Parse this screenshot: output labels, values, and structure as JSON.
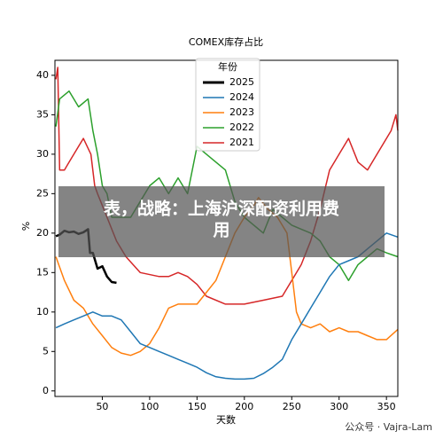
{
  "chart_data": {
    "type": "line",
    "title": "COMEX库存占比",
    "x_label": "天数",
    "y_label": "%",
    "xlim": [
      0,
      362
    ],
    "ylim": [
      -0.7,
      41.9
    ],
    "xticks": [
      50,
      100,
      150,
      200,
      250,
      300,
      350
    ],
    "yticks": [
      0,
      5,
      10,
      15,
      20,
      25,
      30,
      35,
      40
    ],
    "legend_title": "年份",
    "legend": "upper center",
    "series": [
      {
        "name": "2025",
        "color": "#000000",
        "x": [
          1,
          5,
          10,
          15,
          20,
          25,
          30,
          35,
          37,
          40,
          45,
          50,
          55,
          60,
          65
        ],
        "values": [
          19.6,
          19.8,
          20.3,
          20.1,
          20.2,
          19.9,
          20.1,
          20.5,
          17.5,
          17.5,
          15.5,
          15.8,
          14.5,
          13.8,
          13.7
        ]
      },
      {
        "name": "2024",
        "color": "#1f77b4",
        "x": [
          1,
          10,
          20,
          30,
          40,
          50,
          60,
          70,
          80,
          90,
          100,
          110,
          120,
          130,
          140,
          150,
          160,
          170,
          180,
          190,
          200,
          210,
          220,
          230,
          240,
          250,
          260,
          270,
          280,
          290,
          300,
          310,
          320,
          330,
          340,
          350,
          362
        ],
        "values": [
          8,
          8.5,
          9,
          9.5,
          10,
          9.5,
          9.5,
          9,
          7.5,
          6,
          5.5,
          5,
          4.5,
          4,
          3.5,
          3,
          2.3,
          1.8,
          1.6,
          1.5,
          1.5,
          1.6,
          2.2,
          3,
          4,
          6.5,
          8.5,
          10.5,
          12.5,
          14.5,
          16,
          16.5,
          17,
          18,
          19,
          20,
          19.5
        ]
      },
      {
        "name": "2023",
        "color": "#ff7f0e",
        "x": [
          1,
          10,
          20,
          30,
          40,
          50,
          60,
          70,
          80,
          90,
          100,
          110,
          120,
          130,
          140,
          150,
          160,
          170,
          180,
          190,
          200,
          210,
          215,
          225,
          235,
          245,
          250,
          255,
          260,
          270,
          280,
          290,
          300,
          310,
          320,
          330,
          340,
          350,
          362
        ],
        "values": [
          17,
          14,
          11.5,
          10.5,
          8.5,
          7,
          5.5,
          4.8,
          4.5,
          5,
          6,
          8,
          10.5,
          11,
          11,
          11,
          12.5,
          14,
          17,
          20,
          22,
          23.5,
          24.5,
          23,
          22,
          20,
          15,
          10,
          8.5,
          8,
          8.5,
          7.5,
          8,
          7.5,
          7.5,
          7,
          6.5,
          6.5,
          7.8
        ]
      },
      {
        "name": "2022",
        "color": "#2ca02c",
        "x": [
          1,
          5,
          15,
          25,
          35,
          40,
          45,
          50,
          55,
          60,
          70,
          80,
          90,
          100,
          110,
          120,
          130,
          140,
          150,
          160,
          170,
          180,
          190,
          200,
          210,
          220,
          230,
          240,
          250,
          260,
          270,
          280,
          290,
          300,
          310,
          320,
          330,
          340,
          350,
          362
        ],
        "values": [
          33.5,
          37,
          38,
          36,
          37,
          33,
          30,
          26,
          25,
          22,
          22,
          22,
          24,
          26,
          27,
          25,
          27,
          25,
          31,
          30,
          29,
          28,
          24,
          22,
          21,
          20,
          23,
          22,
          21,
          20.5,
          20,
          19,
          17,
          16,
          14,
          16,
          17,
          18,
          17.5,
          17
        ]
      },
      {
        "name": "2021",
        "color": "#d62728",
        "x": [
          1,
          3,
          5,
          10,
          15,
          25,
          30,
          38,
          42,
          45,
          55,
          65,
          75,
          90,
          110,
          120,
          130,
          140,
          150,
          160,
          180,
          200,
          220,
          240,
          250,
          260,
          270,
          280,
          290,
          300,
          310,
          320,
          330,
          340,
          355,
          360,
          362
        ],
        "values": [
          39.5,
          41,
          28,
          28,
          29,
          31,
          32,
          30,
          26,
          25,
          22,
          19,
          17,
          15,
          14.5,
          14.5,
          15,
          14.5,
          13.5,
          12,
          11,
          11,
          11.5,
          12,
          14,
          16,
          19,
          23,
          28,
          30,
          32,
          29,
          28,
          30,
          33,
          35,
          33
        ]
      }
    ]
  },
  "banner": {
    "lines": [
      "表，战略：上海沪深配资利用费",
      "用"
    ]
  },
  "watermark": "公众号 · Vajra-Lam"
}
